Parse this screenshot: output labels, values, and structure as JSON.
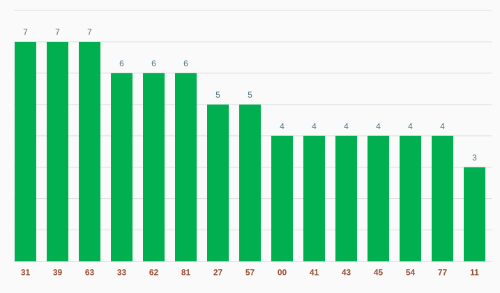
{
  "chart_data": {
    "type": "bar",
    "categories": [
      "31",
      "39",
      "63",
      "33",
      "62",
      "81",
      "27",
      "57",
      "00",
      "41",
      "43",
      "45",
      "54",
      "77",
      "11"
    ],
    "values": [
      7,
      7,
      7,
      6,
      6,
      6,
      5,
      5,
      4,
      4,
      4,
      4,
      4,
      4,
      3
    ],
    "color": "#00af50",
    "ylim": [
      0,
      8
    ],
    "yticks": [
      0,
      1,
      2,
      3,
      4,
      5,
      6,
      7,
      8
    ],
    "grid": true
  }
}
